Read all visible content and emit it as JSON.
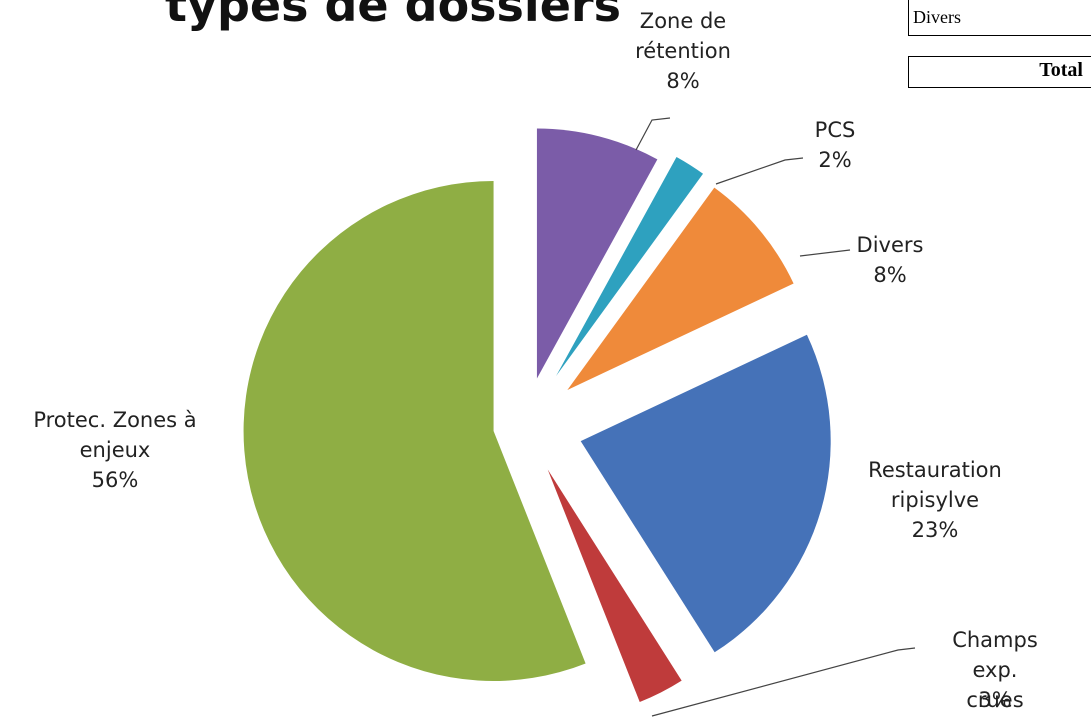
{
  "chart_data": {
    "type": "pie",
    "title": "types de dossiers",
    "categories": [
      "Zone de\nrétention",
      "PCS",
      "Divers",
      "Restauration\nripisylve",
      "Champs exp.\ncrues",
      "Protec. Zones à\nenjeux"
    ],
    "values": [
      8,
      2,
      8,
      23,
      3,
      56
    ],
    "value_labels": [
      "8%",
      "2%",
      "8%",
      "23%",
      "3%",
      "56%"
    ],
    "colors": [
      "#7b5ca8",
      "#2ea1bf",
      "#ef8a3a",
      "#4572b8",
      "#bf3b3b",
      "#8fae44"
    ]
  },
  "table": {
    "row": "Divers",
    "total": "Total"
  }
}
